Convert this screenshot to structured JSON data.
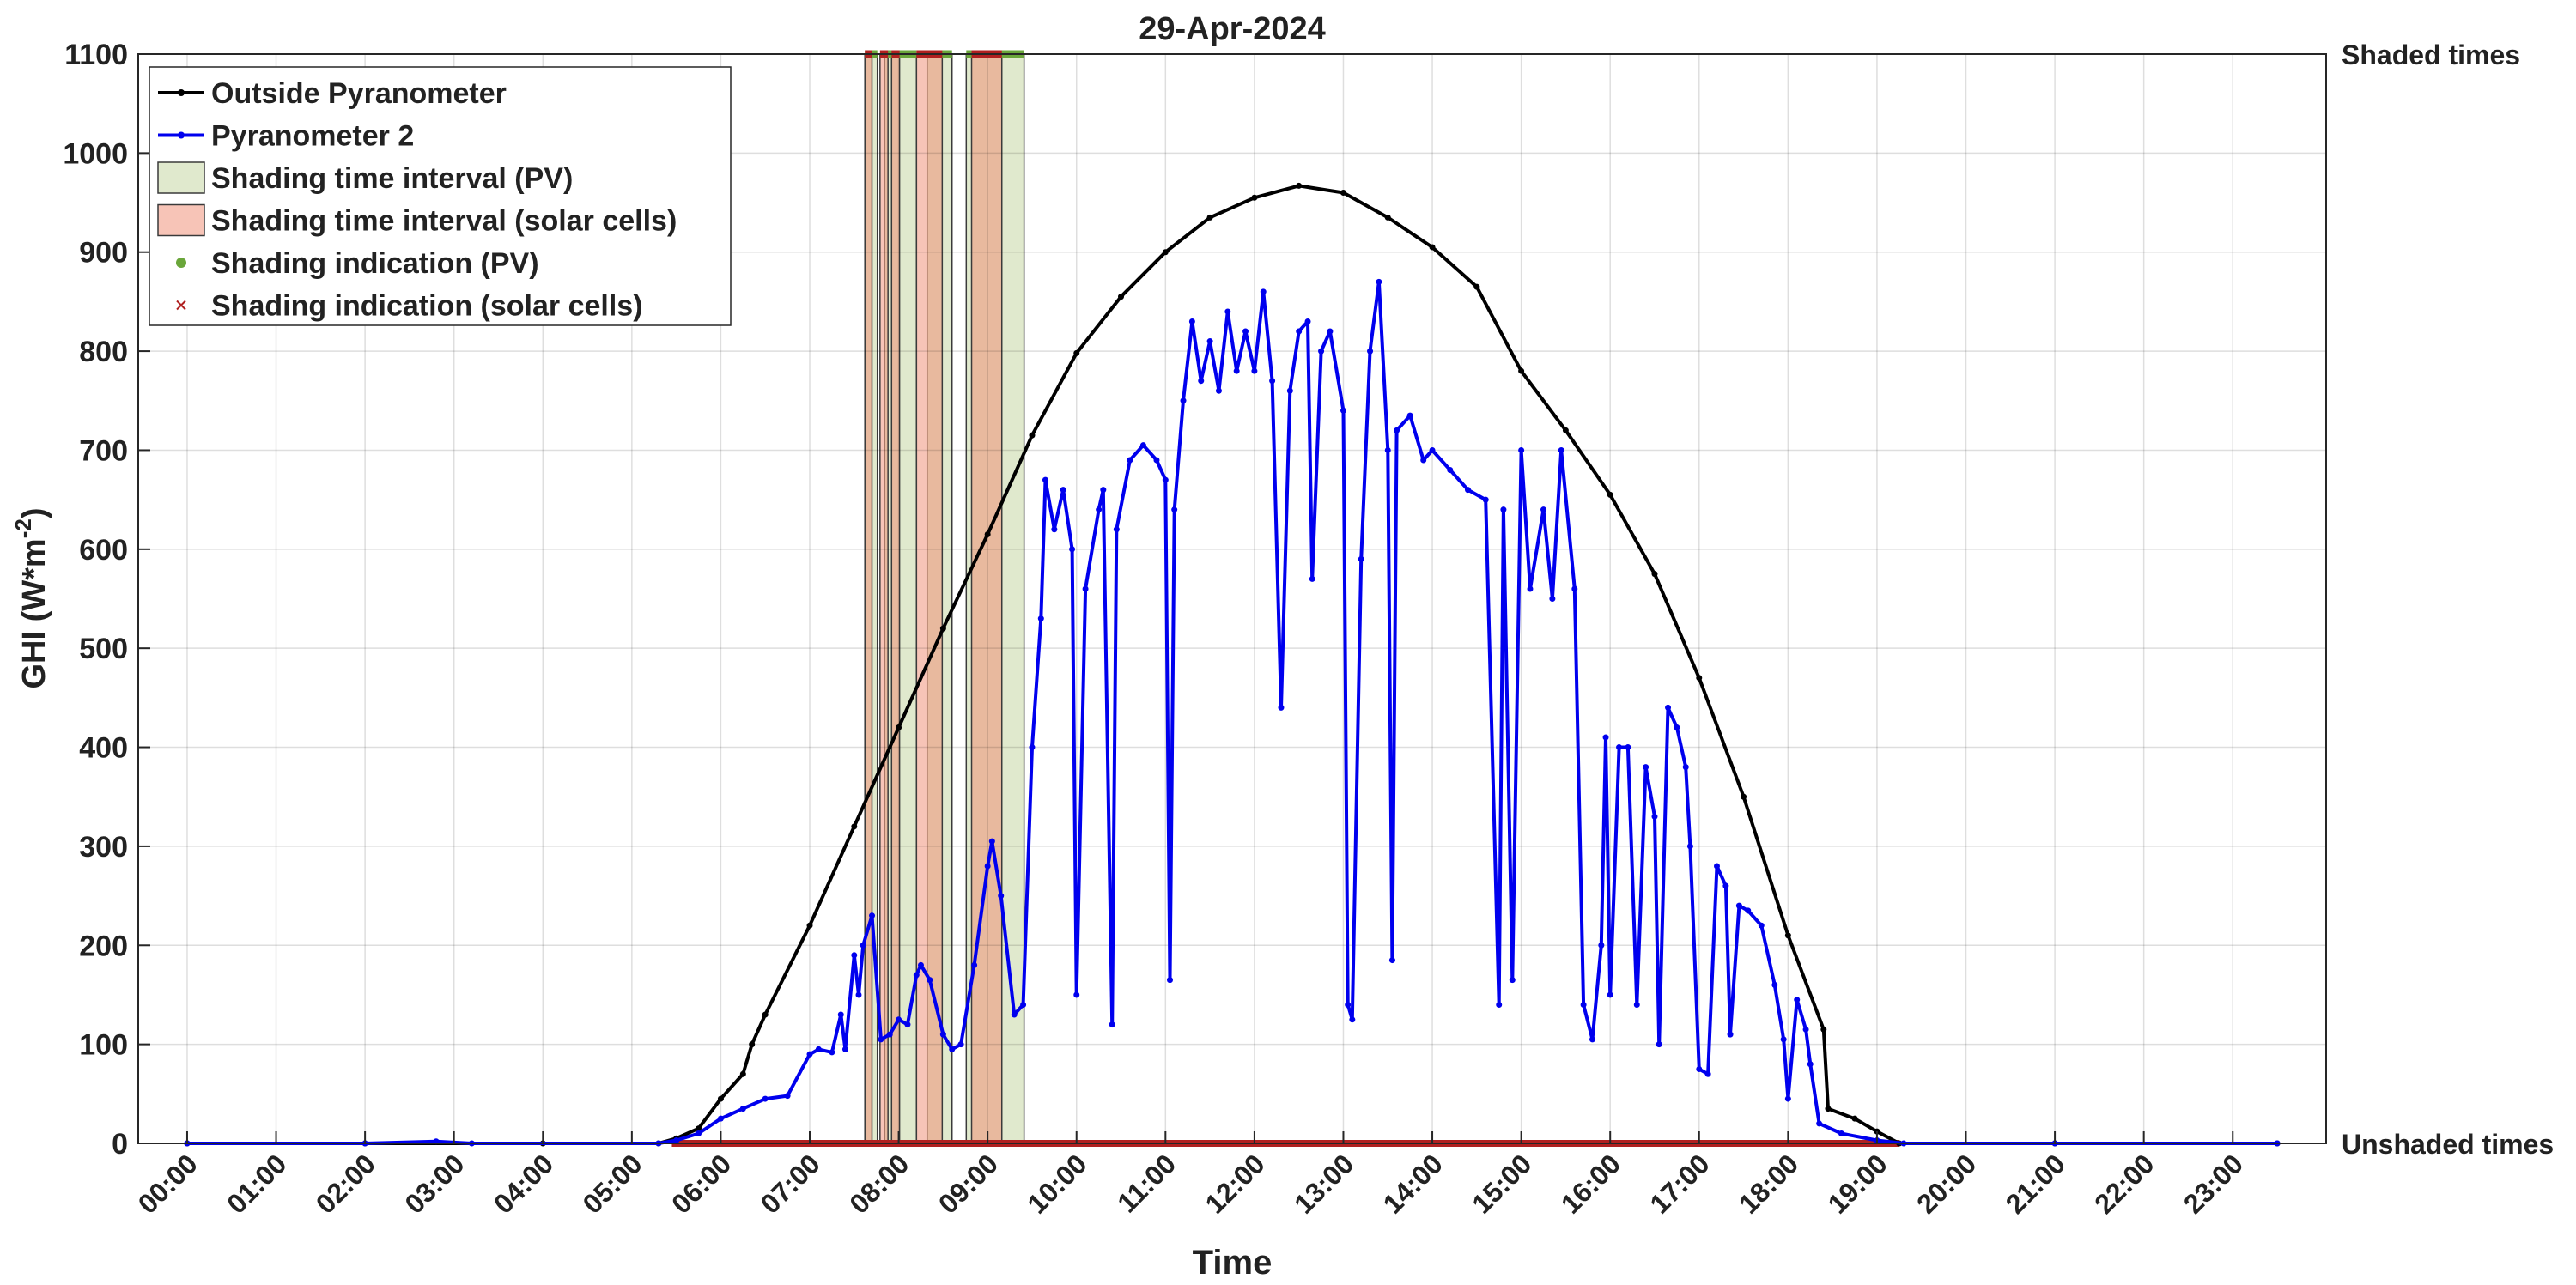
{
  "chart_data": {
    "type": "line",
    "title": "29-Apr-2024",
    "xlabel": "Time",
    "ylabel": "GHI (W*m",
    "ylabel_sup": "-2",
    "ylabel_end": ")",
    "xlim": [
      -0.55,
      24.05
    ],
    "xticks": [
      {
        "value": 0,
        "label": "00:00"
      },
      {
        "value": 1,
        "label": "01:00"
      },
      {
        "value": 2,
        "label": "02:00"
      },
      {
        "value": 3,
        "label": "03:00"
      },
      {
        "value": 4,
        "label": "04:00"
      },
      {
        "value": 5,
        "label": "05:00"
      },
      {
        "value": 6,
        "label": "06:00"
      },
      {
        "value": 7,
        "label": "07:00"
      },
      {
        "value": 8,
        "label": "08:00"
      },
      {
        "value": 9,
        "label": "09:00"
      },
      {
        "value": 10,
        "label": "10:00"
      },
      {
        "value": 11,
        "label": "11:00"
      },
      {
        "value": 12,
        "label": "12:00"
      },
      {
        "value": 13,
        "label": "13:00"
      },
      {
        "value": 14,
        "label": "14:00"
      },
      {
        "value": 15,
        "label": "15:00"
      },
      {
        "value": 16,
        "label": "16:00"
      },
      {
        "value": 17,
        "label": "17:00"
      },
      {
        "value": 18,
        "label": "18:00"
      },
      {
        "value": 19,
        "label": "19:00"
      },
      {
        "value": 20,
        "label": "20:00"
      },
      {
        "value": 21,
        "label": "21:00"
      },
      {
        "value": 22,
        "label": "22:00"
      },
      {
        "value": 23,
        "label": "23:00"
      }
    ],
    "ylim": [
      0,
      1100
    ],
    "yticks": [
      0,
      100,
      200,
      300,
      400,
      500,
      600,
      700,
      800,
      900,
      1000,
      1100
    ],
    "y2lim": [
      0,
      1
    ],
    "y2ticks": [
      {
        "value": 0,
        "label": "Unshaded times"
      },
      {
        "value": 1,
        "label": "Shaded times"
      }
    ],
    "grid": true,
    "legend": "upper-left",
    "series": [
      {
        "name": "Outside Pyranometer",
        "color": "#000000",
        "x": [
          0,
          2,
          4,
          5.3,
          5.5,
          5.75,
          6,
          6.25,
          6.35,
          6.5,
          7,
          7.5,
          8,
          8.5,
          9,
          9.5,
          10,
          10.5,
          11,
          11.5,
          12,
          12.5,
          13,
          13.5,
          14,
          14.5,
          15,
          15.5,
          16,
          16.5,
          17,
          17.5,
          18,
          18.4,
          18.45,
          18.75,
          19,
          19.25,
          21,
          23.5
        ],
        "values": [
          0,
          0,
          0,
          0,
          5,
          15,
          45,
          70,
          100,
          130,
          220,
          320,
          420,
          520,
          615,
          715,
          798,
          855,
          900,
          935,
          955,
          967,
          960,
          935,
          905,
          865,
          780,
          720,
          655,
          575,
          470,
          350,
          210,
          115,
          35,
          25,
          12,
          0,
          0,
          0
        ]
      },
      {
        "name": "Pyranometer 2",
        "color": "#0000ee",
        "x": [
          0,
          2,
          2.8,
          3.2,
          5.3,
          5.5,
          5.75,
          6,
          6.25,
          6.5,
          6.75,
          7,
          7.1,
          7.25,
          7.35,
          7.4,
          7.5,
          7.55,
          7.6,
          7.7,
          7.8,
          7.9,
          8.0,
          8.1,
          8.2,
          8.25,
          8.35,
          8.5,
          8.6,
          8.7,
          8.85,
          9.0,
          9.05,
          9.15,
          9.3,
          9.4,
          9.5,
          9.6,
          9.65,
          9.75,
          9.85,
          9.95,
          10.0,
          10.1,
          10.25,
          10.3,
          10.4,
          10.45,
          10.6,
          10.75,
          10.9,
          11.0,
          11.05,
          11.1,
          11.2,
          11.3,
          11.4,
          11.5,
          11.6,
          11.7,
          11.8,
          11.9,
          12.0,
          12.1,
          12.2,
          12.3,
          12.4,
          12.5,
          12.6,
          12.65,
          12.75,
          12.85,
          13.0,
          13.05,
          13.1,
          13.2,
          13.3,
          13.4,
          13.5,
          13.55,
          13.6,
          13.75,
          13.9,
          14.0,
          14.2,
          14.4,
          14.6,
          14.75,
          14.8,
          14.9,
          15.0,
          15.1,
          15.25,
          15.35,
          15.45,
          15.6,
          15.7,
          15.8,
          15.9,
          15.95,
          16.0,
          16.1,
          16.2,
          16.3,
          16.4,
          16.5,
          16.55,
          16.65,
          16.75,
          16.85,
          16.9,
          17.0,
          17.1,
          17.2,
          17.3,
          17.35,
          17.45,
          17.55,
          17.7,
          17.85,
          17.95,
          18.0,
          18.1,
          18.2,
          18.25,
          18.35,
          18.6,
          19.0,
          19.3,
          21,
          23.5
        ],
        "values": [
          0,
          0,
          2,
          0,
          0,
          3,
          10,
          25,
          35,
          45,
          48,
          90,
          95,
          92,
          130,
          95,
          190,
          150,
          200,
          230,
          105,
          110,
          125,
          120,
          170,
          180,
          165,
          110,
          95,
          100,
          180,
          280,
          305,
          250,
          130,
          140,
          400,
          530,
          670,
          620,
          660,
          600,
          150,
          560,
          640,
          660,
          120,
          620,
          690,
          705,
          690,
          670,
          165,
          640,
          750,
          830,
          770,
          810,
          760,
          840,
          780,
          820,
          780,
          860,
          770,
          440,
          760,
          820,
          830,
          570,
          800,
          820,
          740,
          140,
          125,
          590,
          800,
          870,
          700,
          185,
          720,
          735,
          690,
          700,
          680,
          660,
          650,
          140,
          640,
          165,
          700,
          560,
          640,
          550,
          700,
          560,
          140,
          105,
          200,
          410,
          150,
          400,
          400,
          140,
          380,
          330,
          100,
          440,
          420,
          380,
          300,
          75,
          70,
          280,
          260,
          110,
          240,
          235,
          220,
          160,
          105,
          45,
          145,
          115,
          80,
          20,
          10,
          3,
          0,
          0,
          0
        ]
      }
    ],
    "shading_intervals": [
      {
        "name": "Shading time interval (PV)",
        "color": "#e0e9cd",
        "intervals": [
          [
            7.62,
            7.76
          ],
          [
            7.84,
            8.2
          ],
          [
            8.32,
            8.6
          ],
          [
            8.76,
            9.41
          ]
        ]
      },
      {
        "name": "Shading time interval (solar cells)",
        "color": "#f08a70",
        "intervals": [
          [
            7.62,
            7.7
          ],
          [
            7.79,
            7.88
          ],
          [
            7.92,
            8.01
          ],
          [
            8.2,
            8.49
          ],
          [
            8.82,
            9.16
          ]
        ]
      }
    ],
    "indications": [
      {
        "name": "Shading indication (PV)",
        "color": "#6aa63a",
        "marker": "dot"
      },
      {
        "name": "Shading indication (solar cells)",
        "color": "#b02020",
        "marker": "cross"
      }
    ],
    "indication_period": [
      5.45,
      19.25
    ]
  }
}
